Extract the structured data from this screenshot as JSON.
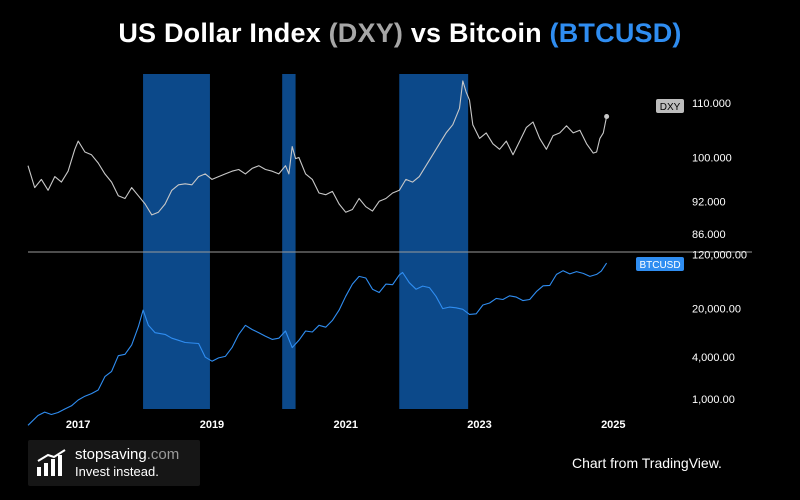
{
  "title": {
    "prefix": "US Dollar Index",
    "dxy": "(DXY)",
    "middle": "vs Bitcoin",
    "btc": "(BTCUSD)"
  },
  "chart_data": [
    {
      "type": "line",
      "name": "DXY",
      "x_axis_ticks": [
        "2017",
        "2019",
        "2021",
        "2023",
        "2025"
      ],
      "y_ticks": [
        "110.000",
        "100.000",
        "92.000",
        "86.000"
      ],
      "y_tick_values": [
        110,
        100,
        92,
        86
      ],
      "ylim": [
        84,
        116
      ],
      "xlim": [
        2016.25,
        2025.1
      ],
      "color": "#c8c8c8",
      "last_value_label": "DXY",
      "points": [
        [
          2016.25,
          98.5
        ],
        [
          2016.35,
          94.5
        ],
        [
          2016.45,
          96.0
        ],
        [
          2016.55,
          94.0
        ],
        [
          2016.65,
          96.5
        ],
        [
          2016.75,
          95.5
        ],
        [
          2016.85,
          97.5
        ],
        [
          2016.95,
          101.5
        ],
        [
          2017.0,
          103.0
        ],
        [
          2017.1,
          101.0
        ],
        [
          2017.2,
          100.5
        ],
        [
          2017.3,
          99.0
        ],
        [
          2017.4,
          97.0
        ],
        [
          2017.5,
          95.5
        ],
        [
          2017.6,
          93.0
        ],
        [
          2017.7,
          92.5
        ],
        [
          2017.8,
          94.5
        ],
        [
          2017.9,
          93.0
        ],
        [
          2018.0,
          91.5
        ],
        [
          2018.1,
          89.5
        ],
        [
          2018.2,
          90.0
        ],
        [
          2018.3,
          91.5
        ],
        [
          2018.4,
          94.0
        ],
        [
          2018.5,
          95.0
        ],
        [
          2018.6,
          95.2
        ],
        [
          2018.7,
          95.0
        ],
        [
          2018.8,
          96.5
        ],
        [
          2018.9,
          97.0
        ],
        [
          2019.0,
          96.0
        ],
        [
          2019.1,
          96.5
        ],
        [
          2019.2,
          97.0
        ],
        [
          2019.3,
          97.5
        ],
        [
          2019.4,
          97.8
        ],
        [
          2019.5,
          97.0
        ],
        [
          2019.6,
          98.0
        ],
        [
          2019.7,
          98.5
        ],
        [
          2019.8,
          97.8
        ],
        [
          2019.9,
          97.5
        ],
        [
          2020.0,
          97.0
        ],
        [
          2020.1,
          98.5
        ],
        [
          2020.15,
          97.0
        ],
        [
          2020.2,
          102.0
        ],
        [
          2020.25,
          99.8
        ],
        [
          2020.3,
          100.0
        ],
        [
          2020.4,
          97.0
        ],
        [
          2020.5,
          96.0
        ],
        [
          2020.6,
          93.5
        ],
        [
          2020.7,
          93.2
        ],
        [
          2020.8,
          93.8
        ],
        [
          2020.9,
          91.5
        ],
        [
          2021.0,
          90.0
        ],
        [
          2021.1,
          90.5
        ],
        [
          2021.2,
          92.5
        ],
        [
          2021.3,
          91.0
        ],
        [
          2021.4,
          90.2
        ],
        [
          2021.5,
          92.0
        ],
        [
          2021.6,
          92.5
        ],
        [
          2021.7,
          93.5
        ],
        [
          2021.8,
          94.0
        ],
        [
          2021.9,
          96.0
        ],
        [
          2022.0,
          95.5
        ],
        [
          2022.1,
          96.5
        ],
        [
          2022.2,
          98.5
        ],
        [
          2022.3,
          100.5
        ],
        [
          2022.4,
          102.5
        ],
        [
          2022.5,
          104.5
        ],
        [
          2022.6,
          106.0
        ],
        [
          2022.7,
          109.0
        ],
        [
          2022.75,
          114.0
        ],
        [
          2022.8,
          112.0
        ],
        [
          2022.85,
          110.5
        ],
        [
          2022.9,
          106.0
        ],
        [
          2023.0,
          103.5
        ],
        [
          2023.1,
          104.5
        ],
        [
          2023.2,
          102.5
        ],
        [
          2023.3,
          101.5
        ],
        [
          2023.4,
          103.0
        ],
        [
          2023.5,
          100.5
        ],
        [
          2023.6,
          103.0
        ],
        [
          2023.7,
          105.5
        ],
        [
          2023.8,
          106.5
        ],
        [
          2023.9,
          103.5
        ],
        [
          2024.0,
          101.5
        ],
        [
          2024.1,
          104.0
        ],
        [
          2024.2,
          104.5
        ],
        [
          2024.3,
          105.8
        ],
        [
          2024.4,
          104.5
        ],
        [
          2024.5,
          105.0
        ],
        [
          2024.6,
          102.5
        ],
        [
          2024.7,
          100.8
        ],
        [
          2024.75,
          101.0
        ],
        [
          2024.8,
          103.5
        ],
        [
          2024.85,
          104.5
        ],
        [
          2024.9,
          107.5
        ]
      ]
    },
    {
      "type": "line",
      "name": "BTCUSD",
      "scale": "log",
      "y_ticks": [
        "120,000.00",
        "20,000.00",
        "4,000.00",
        "1,000.00"
      ],
      "y_tick_values": [
        120000,
        20000,
        4000,
        1000
      ],
      "ylim": [
        500,
        130000
      ],
      "xlim": [
        2016.25,
        2025.1
      ],
      "color": "#2f8df1",
      "last_value_label": "BTCUSD",
      "points": [
        [
          2016.25,
          420
        ],
        [
          2016.4,
          580
        ],
        [
          2016.5,
          650
        ],
        [
          2016.6,
          600
        ],
        [
          2016.7,
          640
        ],
        [
          2016.8,
          720
        ],
        [
          2016.9,
          800
        ],
        [
          2017.0,
          970
        ],
        [
          2017.1,
          1100
        ],
        [
          2017.2,
          1200
        ],
        [
          2017.3,
          1350
        ],
        [
          2017.4,
          2100
        ],
        [
          2017.5,
          2500
        ],
        [
          2017.6,
          4200
        ],
        [
          2017.7,
          4400
        ],
        [
          2017.8,
          6000
        ],
        [
          2017.9,
          11000
        ],
        [
          2017.97,
          19000
        ],
        [
          2018.05,
          11500
        ],
        [
          2018.15,
          9000
        ],
        [
          2018.3,
          8500
        ],
        [
          2018.4,
          7500
        ],
        [
          2018.5,
          7000
        ],
        [
          2018.6,
          6500
        ],
        [
          2018.7,
          6400
        ],
        [
          2018.8,
          6300
        ],
        [
          2018.9,
          4000
        ],
        [
          2019.0,
          3500
        ],
        [
          2019.1,
          3900
        ],
        [
          2019.2,
          4100
        ],
        [
          2019.3,
          5500
        ],
        [
          2019.4,
          8500
        ],
        [
          2019.5,
          11500
        ],
        [
          2019.6,
          10000
        ],
        [
          2019.7,
          9000
        ],
        [
          2019.8,
          8000
        ],
        [
          2019.9,
          7200
        ],
        [
          2020.0,
          7500
        ],
        [
          2020.1,
          9500
        ],
        [
          2020.2,
          5500
        ],
        [
          2020.3,
          7000
        ],
        [
          2020.4,
          9500
        ],
        [
          2020.5,
          9200
        ],
        [
          2020.6,
          11500
        ],
        [
          2020.7,
          10800
        ],
        [
          2020.8,
          13500
        ],
        [
          2020.9,
          19000
        ],
        [
          2021.0,
          30000
        ],
        [
          2021.1,
          45000
        ],
        [
          2021.2,
          58000
        ],
        [
          2021.3,
          55000
        ],
        [
          2021.4,
          38000
        ],
        [
          2021.5,
          34000
        ],
        [
          2021.6,
          45000
        ],
        [
          2021.7,
          44000
        ],
        [
          2021.8,
          61000
        ],
        [
          2021.85,
          66000
        ],
        [
          2021.95,
          47000
        ],
        [
          2022.05,
          38000
        ],
        [
          2022.15,
          42000
        ],
        [
          2022.25,
          40000
        ],
        [
          2022.35,
          30000
        ],
        [
          2022.45,
          20000
        ],
        [
          2022.55,
          21000
        ],
        [
          2022.65,
          20500
        ],
        [
          2022.75,
          19500
        ],
        [
          2022.85,
          16500
        ],
        [
          2022.95,
          16800
        ],
        [
          2023.05,
          22500
        ],
        [
          2023.15,
          24000
        ],
        [
          2023.25,
          28000
        ],
        [
          2023.35,
          27000
        ],
        [
          2023.45,
          30500
        ],
        [
          2023.55,
          29200
        ],
        [
          2023.65,
          26000
        ],
        [
          2023.75,
          27000
        ],
        [
          2023.85,
          35000
        ],
        [
          2023.95,
          42500
        ],
        [
          2024.05,
          43000
        ],
        [
          2024.15,
          62000
        ],
        [
          2024.25,
          70000
        ],
        [
          2024.35,
          63000
        ],
        [
          2024.45,
          68000
        ],
        [
          2024.55,
          64000
        ],
        [
          2024.65,
          58000
        ],
        [
          2024.75,
          62000
        ],
        [
          2024.82,
          69000
        ],
        [
          2024.9,
          90000
        ]
      ]
    }
  ],
  "shaded_periods": [
    {
      "start": 2017.97,
      "end": 2018.97
    },
    {
      "start": 2020.05,
      "end": 2020.25
    },
    {
      "start": 2021.8,
      "end": 2022.83
    }
  ],
  "logo": {
    "brand": "stopsaving",
    "domain": ".com",
    "tagline": "Invest instead."
  },
  "credit": "Chart from TradingView."
}
